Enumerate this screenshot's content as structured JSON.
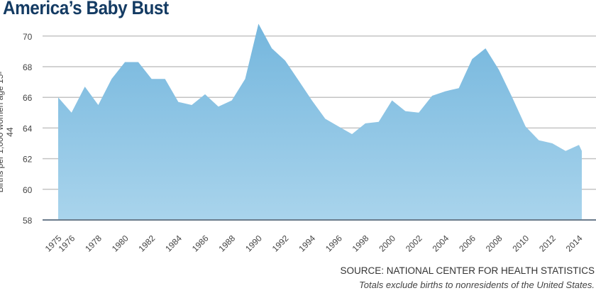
{
  "chart_data": {
    "type": "area",
    "title": "America’s Baby Bust",
    "ylabel": "Births per 1,000 women age 15-44",
    "xlabel": "",
    "ylim": [
      58,
      70
    ],
    "yticks": [
      "58",
      "60",
      "62",
      "64",
      "66",
      "68",
      "70"
    ],
    "xtick_labels": [
      "1975",
      "1976",
      "1978",
      "1980",
      "1982",
      "1984",
      "1986",
      "1988",
      "1990",
      "1992",
      "1994",
      "1996",
      "1998",
      "2000",
      "2002",
      "2004",
      "2006",
      "2008",
      "2010",
      "2012",
      "2014"
    ],
    "x": [
      1975,
      1976,
      1977,
      1978,
      1979,
      1980,
      1981,
      1982,
      1983,
      1984,
      1985,
      1986,
      1987,
      1988,
      1989,
      1990,
      1991,
      1992,
      1993,
      1994,
      1995,
      1996,
      1997,
      1998,
      1999,
      2000,
      2001,
      2002,
      2003,
      2004,
      2005,
      2006,
      2007,
      2008,
      2009,
      2010,
      2011,
      2012,
      2013,
      2014
    ],
    "values": [
      66.0,
      65.0,
      66.7,
      65.5,
      67.2,
      68.3,
      68.3,
      67.2,
      67.2,
      65.7,
      65.5,
      66.2,
      65.4,
      65.8,
      67.2,
      70.8,
      69.2,
      68.4,
      67.1,
      65.8,
      64.6,
      64.1,
      63.6,
      64.3,
      64.4,
      65.8,
      65.1,
      65.0,
      66.1,
      66.4,
      66.6,
      68.5,
      69.2,
      67.8,
      66.0,
      64.1,
      63.2,
      63.0,
      62.5,
      62.9
    ],
    "grid": true,
    "color": "#7cbbdf",
    "source": "SOURCE: NATIONAL CENTER FOR HEALTH STATISTICS",
    "note": "Totals exclude births to nonresidents of the United States."
  }
}
